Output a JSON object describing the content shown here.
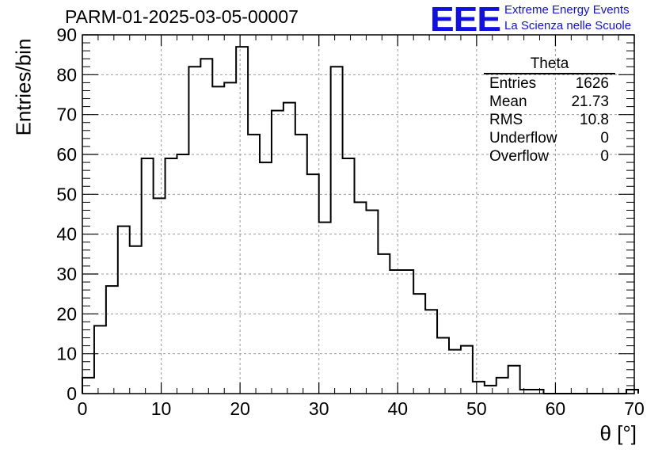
{
  "header": {
    "title": "PARM-01-2025-03-05-00007",
    "logo": "EEE",
    "brand_line1": "Extreme Energy Events",
    "brand_line2": "La Scienza nelle Scuole"
  },
  "stats_box": {
    "title": "Theta",
    "rows": [
      {
        "label": "Entries",
        "value": "1626"
      },
      {
        "label": "Mean",
        "value": "21.73"
      },
      {
        "label": "RMS",
        "value": "10.8"
      },
      {
        "label": "Underflow",
        "value": "0"
      },
      {
        "label": "Overflow",
        "value": "0"
      }
    ]
  },
  "chart_data": {
    "type": "histogram",
    "title": "PARM-01-2025-03-05-00007",
    "xlabel": "θ [°]",
    "ylabel": "Entries/bin",
    "xlim": [
      0,
      70
    ],
    "ylim": [
      0,
      90
    ],
    "bin_width": 1.5,
    "bin_start": 0,
    "values": [
      4,
      17,
      27,
      42,
      37,
      59,
      49,
      59,
      60,
      82,
      84,
      77,
      78,
      87,
      65,
      58,
      71,
      73,
      65,
      55,
      43,
      82,
      59,
      48,
      46,
      35,
      31,
      31,
      25,
      21,
      14,
      11,
      12,
      3,
      2,
      4,
      7,
      1,
      1,
      0,
      0,
      0,
      0,
      0,
      0,
      0,
      1
    ],
    "x_ticks": [
      "0",
      "10",
      "20",
      "30",
      "40",
      "50",
      "60",
      "70"
    ],
    "y_ticks": [
      "0",
      "10",
      "20",
      "30",
      "40",
      "50",
      "60",
      "70",
      "80",
      "90"
    ],
    "grid": true,
    "legend": "top-right stats box"
  },
  "colors": {
    "line": "#000000",
    "grid": "#9a9a9a",
    "brand": "#1010e0"
  }
}
